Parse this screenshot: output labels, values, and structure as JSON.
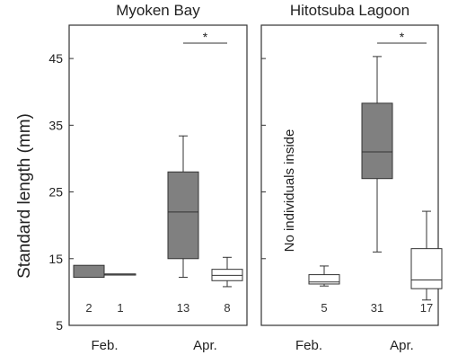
{
  "chart_data": {
    "type": "box",
    "ylabel": "Standard length (mm)",
    "ylim": [
      5,
      50
    ],
    "yticks": [
      5,
      15,
      25,
      35,
      45
    ],
    "colors": {
      "feb": "#808080",
      "apr_dark": "#808080",
      "apr_light": "#ffffff",
      "stroke": "#333333"
    },
    "panels": [
      {
        "title": "Myoken Bay",
        "categories": [
          "Feb.",
          "Apr."
        ],
        "note": "",
        "significance": "*",
        "boxes": [
          {
            "group": "Feb.",
            "fill": "dark",
            "min": 12.2,
            "q1": 12.2,
            "median": 12.2,
            "q3": 14.0,
            "max": 14.0,
            "n": "2"
          },
          {
            "group": "Feb.",
            "fill": "light",
            "min": 12.7,
            "q1": 12.7,
            "median": 12.7,
            "q3": 12.7,
            "max": 12.7,
            "n": "1"
          },
          {
            "group": "Apr.",
            "fill": "dark",
            "min": 12.2,
            "q1": 15.0,
            "median": 22.0,
            "q3": 28.0,
            "max": 33.4,
            "n": "13"
          },
          {
            "group": "Apr.",
            "fill": "light",
            "min": 10.8,
            "q1": 11.7,
            "median": 12.5,
            "q3": 13.4,
            "max": 15.2,
            "n": "8"
          }
        ]
      },
      {
        "title": "Hitotsuba Lagoon",
        "categories": [
          "Feb.",
          "Apr."
        ],
        "note": "No individuals inside",
        "significance": "*",
        "boxes": [
          {
            "group": "Feb.",
            "fill": "dark",
            "min": null,
            "q1": null,
            "median": null,
            "q3": null,
            "max": null,
            "n": ""
          },
          {
            "group": "Feb.",
            "fill": "light",
            "min": 10.9,
            "q1": 11.2,
            "median": 11.5,
            "q3": 12.6,
            "max": 13.9,
            "n": "5"
          },
          {
            "group": "Apr.",
            "fill": "dark",
            "min": 16.0,
            "q1": 27.0,
            "median": 31.0,
            "q3": 38.3,
            "max": 45.3,
            "n": "31"
          },
          {
            "group": "Apr.",
            "fill": "light",
            "min": 8.8,
            "q1": 10.5,
            "median": 11.8,
            "q3": 16.5,
            "max": 22.1,
            "n": "17"
          }
        ]
      }
    ]
  }
}
